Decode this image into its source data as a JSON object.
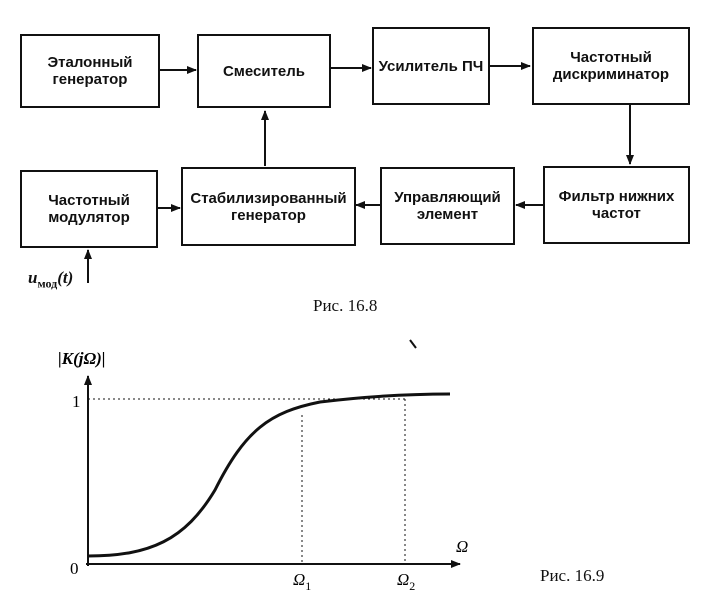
{
  "fig1": {
    "blocks": {
      "ref_gen": "Эталонный генератор",
      "mixer": "Смеситель",
      "if_amp": "Усилитель ПЧ",
      "freq_disc": "Частотный дискриминатор",
      "freq_mod": "Частотный модулятор",
      "stab_gen": "Стабилизированный генератор",
      "ctrl_elem": "Управляющий элемент",
      "lpf": "Фильтр нижних частот"
    },
    "input_label_main": "u",
    "input_label_sub": "мод",
    "input_label_arg": "(t)",
    "caption": "Рис. 16.8"
  },
  "fig2": {
    "y_label": "|K(jΩ)|",
    "y_one": "1",
    "origin": "0",
    "x_label": "Ω",
    "omega1": "Ω",
    "omega1_sub": "1",
    "omega2": "Ω",
    "omega2_sub": "2",
    "caption": "Рис. 16.9"
  },
  "colors": {
    "ink": "#111111",
    "paper": "#ffffff"
  }
}
